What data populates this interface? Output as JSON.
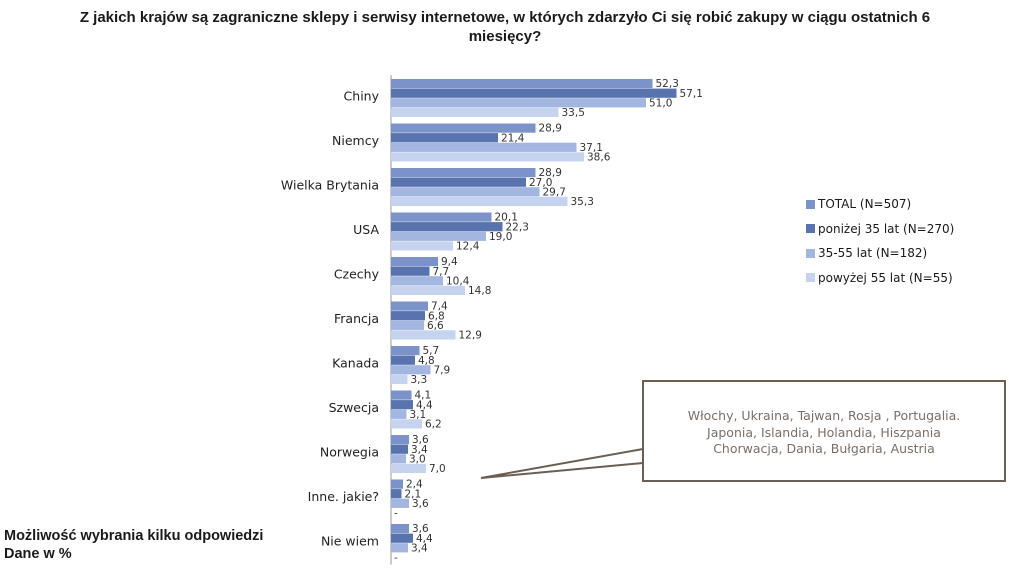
{
  "chart_data": {
    "type": "bar",
    "orientation": "horizontal",
    "title": "Z jakich krajów są zagraniczne sklepy i serwisy internetowe, w których zdarzyło Ci się robić zakupy w ciągu ostatnich 6 miesięcy?",
    "categories": [
      "Chiny",
      "Niemcy",
      "Wielka Brytania",
      "USA",
      "Czechy",
      "Francja",
      "Kanada",
      "Szwecja",
      "Norwegia",
      "Inne. jakie?",
      "Nie wiem"
    ],
    "series": [
      {
        "name": "TOTAL (N=507)",
        "color": "#7b93c8",
        "values": [
          52.3,
          28.9,
          28.9,
          20.1,
          9.4,
          7.4,
          5.7,
          4.1,
          3.6,
          2.4,
          3.6
        ],
        "labels": [
          "52,3",
          "28,9",
          "28,9",
          "20,1",
          "9,4",
          "7,4",
          "5,7",
          "4,1",
          "3,6",
          "2,4",
          "3,6"
        ]
      },
      {
        "name": "poniżej 35 lat (N=270)",
        "color": "#5873ae",
        "values": [
          57.1,
          21.4,
          27.0,
          22.3,
          7.7,
          6.8,
          4.8,
          4.4,
          3.4,
          2.1,
          4.4
        ],
        "labels": [
          "57,1",
          "21,4",
          "27,0",
          "22,3",
          "7,7",
          "6,8",
          "4,8",
          "4,4",
          "3,4",
          "2,1",
          "4,4"
        ]
      },
      {
        "name": "35-55 lat (N=182)",
        "color": "#a3b6e0",
        "values": [
          51.0,
          37.1,
          29.7,
          19.0,
          10.4,
          6.6,
          7.9,
          3.1,
          3.0,
          3.6,
          3.4
        ],
        "labels": [
          "51,0",
          "37,1",
          "29,7",
          "19,0",
          "10,4",
          "6,6",
          "7,9",
          "3,1",
          "3,0",
          "3,6",
          "3,4"
        ]
      },
      {
        "name": "powyżej 55 lat (N=55)",
        "color": "#c6d3ef",
        "values": [
          33.5,
          38.6,
          35.3,
          12.4,
          14.8,
          12.9,
          3.3,
          6.2,
          7.0,
          0,
          0
        ],
        "labels": [
          "33,5",
          "38,6",
          "35,3",
          "12,4",
          "14,8",
          "12,9",
          "3,3",
          "6,2",
          "7,0",
          "-",
          "-"
        ]
      }
    ],
    "xlim": [
      0,
      60
    ],
    "grid": false,
    "legend_position": "right"
  },
  "callout": {
    "lines": [
      "Włochy, Ukraina, Tajwan, Rosja , Portugalia.",
      "Japonia, Islandia, Holandia, Hiszpania",
      "Chorwacja, Dania, Bułgaria, Austria"
    ]
  },
  "footnote": {
    "line1": "Możliwość  wybrania kilku odpowiedzi",
    "line2": "Dane w %"
  }
}
